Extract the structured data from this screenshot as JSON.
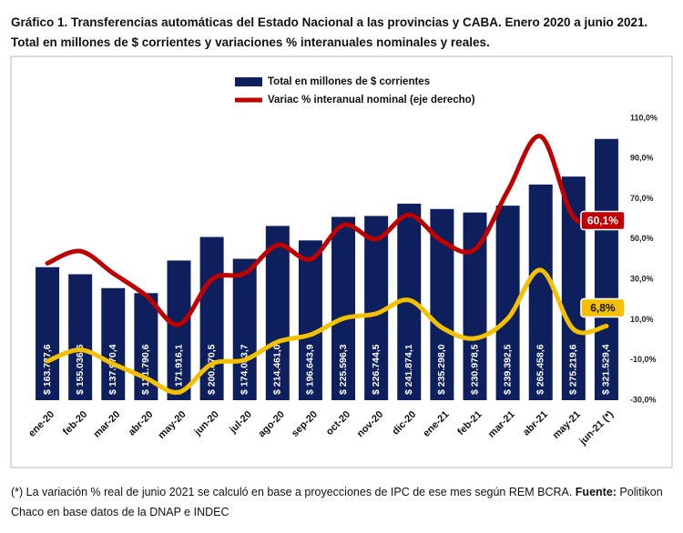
{
  "chart_data": {
    "type": "bar",
    "title": "Gráfico 1. Transferencias automáticas del Estado Nacional a las provincias y CABA. Enero 2020 a junio 2021. Total en millones de $ corrientes y variaciones % interanuales nominales y reales.",
    "categories": [
      "ene-20",
      "feb-20",
      "mar-20",
      "abr-20",
      "may-20",
      "jun-20",
      "jul-20",
      "ago-20",
      "sep-20",
      "oct-20",
      "nov-20",
      "dic-20",
      "ene-21",
      "feb-21",
      "mar-21",
      "abr-21",
      "may-21",
      "jun-21 (*)"
    ],
    "ylim": [
      0,
      347000
    ],
    "y2lim": [
      -30,
      110
    ],
    "y2ticks": [
      {
        "value": -30,
        "label": "-30,0%"
      },
      {
        "value": -10,
        "label": "-10,0%"
      },
      {
        "value": 10,
        "label": "10,0%"
      },
      {
        "value": 30,
        "label": "30,0%"
      },
      {
        "value": 50,
        "label": "50,0%"
      },
      {
        "value": 70,
        "label": "70,0%"
      },
      {
        "value": 90,
        "label": "90,0%"
      },
      {
        "value": 110,
        "label": "110,0%"
      }
    ],
    "series": [
      {
        "type": "bar",
        "name": "Total en millones de $ corrientes",
        "color": "#0d1f5c",
        "values": [
          163727.6,
          155036.6,
          137970.4,
          131790.6,
          171916.1,
          200870.5,
          174033.7,
          214461.0,
          196643.9,
          225596.3,
          226744.5,
          241874.1,
          235298.0,
          230978.5,
          239392.5,
          265458.6,
          275219.6,
          321529.4
        ],
        "value_labels": [
          "$ 163.727,6",
          "$ 155.036,6",
          "$ 137.970,4",
          "$ 131.790,6",
          "$ 171.916,1",
          "$ 200.870,5",
          "$ 174.033,7",
          "$ 214.461,0",
          "$ 196.643,9",
          "$ 225.596,3",
          "$ 226.744,5",
          "$ 241.874,1",
          "$ 235.298,0",
          "$ 230.978,5",
          "$ 239.392,5",
          "$ 265.458,6",
          "$ 275.219,6",
          "$ 321.529,4"
        ]
      },
      {
        "type": "line",
        "axis": "y2",
        "name": "Variac % interanual nominal (eje derecho)",
        "color": "#c00000",
        "values": [
          38,
          44,
          33,
          22,
          7.5,
          30,
          33,
          47,
          40,
          57,
          50,
          62,
          49,
          45,
          74,
          101,
          61,
          60.1
        ],
        "value_labels": [
          null,
          null,
          null,
          null,
          null,
          null,
          null,
          null,
          null,
          null,
          null,
          null,
          null,
          null,
          null,
          null,
          null,
          "60,1%"
        ]
      },
      {
        "type": "line",
        "axis": "y2",
        "color": "#f5c000",
        "values": [
          -10.6,
          -5,
          -12,
          -19,
          -26,
          -12,
          -10,
          -1,
          2.5,
          10.6,
          13,
          19.7,
          6,
          0.7,
          10.6,
          34.6,
          5.2,
          6.8
        ],
        "value_labels": [
          null,
          null,
          null,
          null,
          null,
          null,
          null,
          null,
          null,
          null,
          null,
          null,
          null,
          null,
          null,
          null,
          null,
          "6,8%"
        ]
      }
    ],
    "note": "(*) La variación % real de junio 2021 se calculó en base a proyecciones de IPC de ese mes según REM BCRA.",
    "source_label": "Fuente:",
    "source": "Politikon Chaco en base datos de la DNAP e INDEC"
  }
}
